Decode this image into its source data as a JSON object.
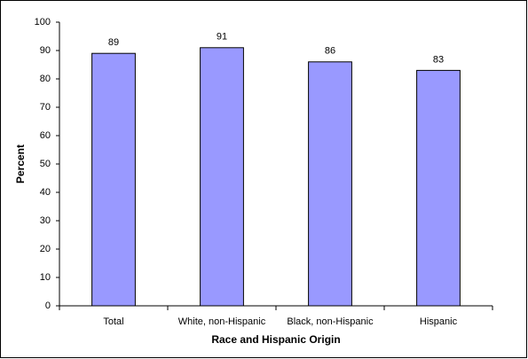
{
  "chart_data": {
    "type": "bar",
    "x_label": "Race and Hispanic Origin",
    "y_label": "Percent",
    "categories": [
      "Total",
      "White, non-Hispanic",
      "Black, non-Hispanic",
      "Hispanic"
    ],
    "values": [
      89,
      91,
      86,
      83
    ],
    "color": "#9999ff",
    "ylim": [
      0,
      100
    ],
    "yticks": [
      0,
      10,
      20,
      30,
      40,
      50,
      60,
      70,
      80,
      90,
      100
    ],
    "grid": false,
    "data_labels": true
  }
}
